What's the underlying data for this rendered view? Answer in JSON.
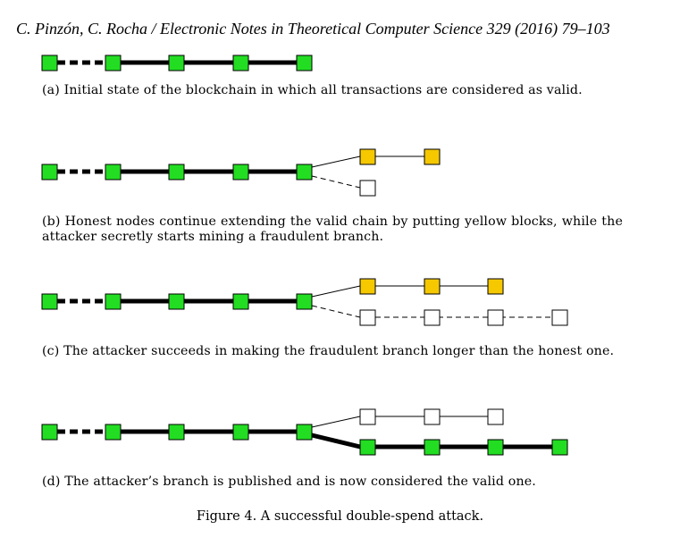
{
  "header": {
    "running_head": "C. Pinzón, C. Rocha / Electronic Notes in Theoretical Computer Science 329 (2016) 79–103"
  },
  "panels": [
    {
      "caption": "(a) Initial state of the blockchain in which all transactions are considered as valid."
    },
    {
      "caption": "(b) Honest nodes continue extending the valid chain by putting yellow blocks, while the attacker secretly starts mining a fraudulent branch."
    },
    {
      "caption": "(c) The attacker succeeds in making the fraudulent branch longer than the honest one."
    },
    {
      "caption": "(d) The attacker’s branch is published and is now considered the valid one."
    }
  ],
  "figure": {
    "caption": "Figure 4. A successful double-spend attack."
  },
  "colors": {
    "valid_block": "#22dd22",
    "honest_block": "#f5c800",
    "fraud_block": "#ffffff",
    "stroke": "#000000"
  }
}
